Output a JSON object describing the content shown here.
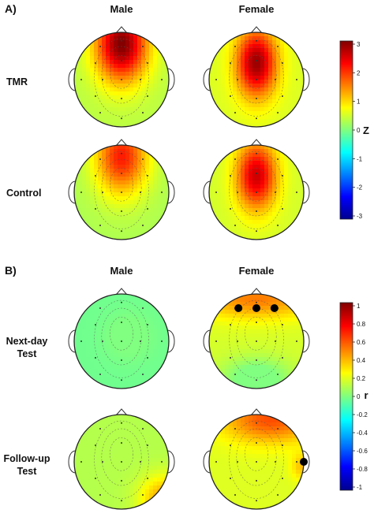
{
  "panels": [
    {
      "label": "A)",
      "columns": [
        "Male",
        "Female"
      ],
      "rows": [
        {
          "label_lines": [
            "TMR"
          ],
          "maps": [
            {
              "pattern": "frontal",
              "level": 3.0,
              "markers": []
            },
            {
              "pattern": "central",
              "level": 2.85,
              "markers": []
            }
          ]
        },
        {
          "label_lines": [
            "Control"
          ],
          "maps": [
            {
              "pattern": "frontal",
              "level": 2.1,
              "markers": []
            },
            {
              "pattern": "central",
              "level": 2.55,
              "markers": []
            }
          ]
        }
      ],
      "colorbar": {
        "label": "Z",
        "min": -3,
        "max": 3,
        "ticks": [
          "3",
          "2",
          "1",
          "0",
          "-1",
          "-2",
          "-3"
        ]
      }
    },
    {
      "label": "B)",
      "columns": [
        "Male",
        "Female"
      ],
      "rows": [
        {
          "label_lines": [
            "Next-day",
            "Test"
          ],
          "maps": [
            {
              "pattern": "cool-center",
              "level": -0.1,
              "markers": []
            },
            {
              "pattern": "warm-frontal",
              "level": 0.55,
              "markers": [
                "F3",
                "Fz",
                "F4"
              ]
            }
          ]
        },
        {
          "label_lines": [
            "Follow-up",
            "Test"
          ],
          "maps": [
            {
              "pattern": "warm-right",
              "level": 0.45,
              "markers": []
            },
            {
              "pattern": "warm-top",
              "level": 0.6,
              "markers": [
                "T8"
              ]
            }
          ]
        }
      ],
      "colorbar": {
        "label": "r",
        "min": -1,
        "max": 1,
        "ticks": [
          "1",
          "0.8",
          "0.6",
          "0.4",
          "0.2",
          "0",
          "-0.2",
          "-0.4",
          "-0.6",
          "-0.8",
          "-1"
        ]
      }
    }
  ]
}
